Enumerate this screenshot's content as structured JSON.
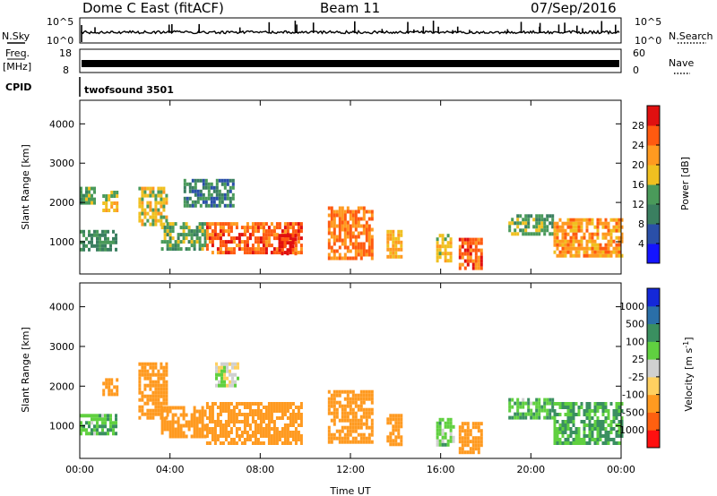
{
  "header": {
    "title": "Dome C East (fitACF)",
    "beam": "Beam 11",
    "date": "07/Sep/2016"
  },
  "panels": {
    "nsky": {
      "label": "N.Sky",
      "ticks": [
        "10^5",
        "10^0"
      ]
    },
    "nsearch": {
      "label": "N.Search",
      "ticks": [
        "10^5",
        "10^0"
      ]
    },
    "freq": {
      "label_top": "Freq.",
      "label_bot": "[MHz]",
      "ticks": [
        "18",
        "8"
      ]
    },
    "nave": {
      "label": "Nave",
      "ticks": [
        "60",
        "0"
      ]
    },
    "cpid": {
      "label": "CPID",
      "value": "twofsound 3501"
    }
  },
  "colors": {
    "power_scale": [
      "#1414ff",
      "#2a4fa8",
      "#3a7f60",
      "#4a9a5a",
      "#f0c020",
      "#ff9a20",
      "#ff5a10",
      "#e01010"
    ],
    "velocity_scale": [
      "#ff1010",
      "#ff6010",
      "#ff9a20",
      "#ffd060",
      "#d0d0d0",
      "#60d040",
      "#3a8f60",
      "#2a6fa8",
      "#1428d8"
    ]
  },
  "chart_data": [
    {
      "type": "heatmap",
      "name": "power",
      "xlabel": "Time UT",
      "ylabel": "Slant Range [km]",
      "xticks": [
        "00:00",
        "04:00",
        "08:00",
        "12:00",
        "16:00",
        "20:00",
        "00:00"
      ],
      "xlim_hours": [
        0,
        24
      ],
      "ylim": [
        180,
        4600
      ],
      "yticks": [
        1000,
        2000,
        3000,
        4000
      ],
      "colorbar": {
        "label": "Power [dB]",
        "ticks": [
          "4",
          "8",
          "12",
          "16",
          "20",
          "24",
          "28"
        ],
        "range": [
          0,
          32
        ]
      },
      "regions": [
        {
          "t0": 0.0,
          "t1": 1.6,
          "r0": 800,
          "r1": 1300,
          "level": 12
        },
        {
          "t0": 0.0,
          "t1": 0.6,
          "r0": 2000,
          "r1": 2400,
          "level": 14
        },
        {
          "t0": 1.0,
          "t1": 1.6,
          "r0": 1800,
          "r1": 2300,
          "level": 18
        },
        {
          "t0": 2.6,
          "t1": 3.8,
          "r0": 1400,
          "r1": 2400,
          "level": 18
        },
        {
          "t0": 3.6,
          "t1": 5.6,
          "r0": 800,
          "r1": 1500,
          "level": 14
        },
        {
          "t0": 4.6,
          "t1": 6.8,
          "r0": 1900,
          "r1": 2600,
          "level": 10
        },
        {
          "t0": 5.6,
          "t1": 9.8,
          "r0": 700,
          "r1": 1500,
          "level": 26
        },
        {
          "t0": 8.8,
          "t1": 9.6,
          "r0": 700,
          "r1": 1200,
          "level": 30
        },
        {
          "t0": 11.0,
          "t1": 13.0,
          "r0": 600,
          "r1": 1900,
          "level": 24
        },
        {
          "t0": 13.6,
          "t1": 14.2,
          "r0": 600,
          "r1": 1300,
          "level": 20
        },
        {
          "t0": 15.8,
          "t1": 16.5,
          "r0": 500,
          "r1": 1200,
          "level": 18
        },
        {
          "t0": 16.8,
          "t1": 17.8,
          "r0": 300,
          "r1": 1100,
          "level": 26
        },
        {
          "t0": 19.0,
          "t1": 21.0,
          "r0": 1200,
          "r1": 1700,
          "level": 14
        },
        {
          "t0": 21.0,
          "t1": 24.0,
          "r0": 600,
          "r1": 1600,
          "level": 22
        }
      ]
    },
    {
      "type": "heatmap",
      "name": "velocity",
      "xlabel": "Time UT",
      "ylabel": "Slant Range [km]",
      "xticks": [
        "00:00",
        "04:00",
        "08:00",
        "12:00",
        "16:00",
        "20:00",
        "00:00"
      ],
      "xlim_hours": [
        0,
        24
      ],
      "ylim": [
        180,
        4600
      ],
      "yticks": [
        1000,
        2000,
        3000,
        4000
      ],
      "colorbar": {
        "label": "Velocity [m s^-1]",
        "ticks": [
          "1000",
          "500",
          "100",
          "25",
          "-25",
          "-100",
          "-500",
          "-1000"
        ]
      },
      "regions": [
        {
          "t0": 0.0,
          "t1": 1.6,
          "r0": 800,
          "r1": 1300,
          "level": 80
        },
        {
          "t0": 1.0,
          "t1": 1.6,
          "r0": 1800,
          "r1": 2200,
          "level": -300
        },
        {
          "t0": 2.6,
          "t1": 3.8,
          "r0": 1200,
          "r1": 2600,
          "level": -400
        },
        {
          "t0": 3.6,
          "t1": 5.6,
          "r0": 700,
          "r1": 1500,
          "level": -400
        },
        {
          "t0": 5.6,
          "t1": 9.8,
          "r0": 600,
          "r1": 1600,
          "level": -350
        },
        {
          "t0": 6.0,
          "t1": 7.0,
          "r0": 2000,
          "r1": 2600,
          "level": 0
        },
        {
          "t0": 11.0,
          "t1": 13.0,
          "r0": 600,
          "r1": 1900,
          "level": -400
        },
        {
          "t0": 13.6,
          "t1": 14.2,
          "r0": 500,
          "r1": 1300,
          "level": -200
        },
        {
          "t0": 15.8,
          "t1": 16.6,
          "r0": 500,
          "r1": 1200,
          "level": 60
        },
        {
          "t0": 16.8,
          "t1": 17.8,
          "r0": 300,
          "r1": 1100,
          "level": -300
        },
        {
          "t0": 19.0,
          "t1": 21.0,
          "r0": 1200,
          "r1": 1700,
          "level": 80
        },
        {
          "t0": 21.0,
          "t1": 24.0,
          "r0": 600,
          "r1": 1600,
          "level": 100
        }
      ]
    }
  ]
}
